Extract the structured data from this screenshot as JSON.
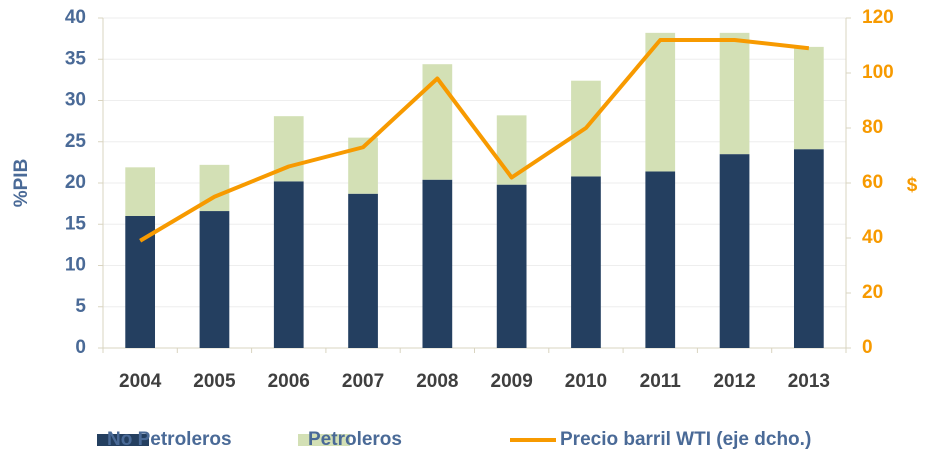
{
  "chart_data": {
    "type": "bar",
    "stacked": true,
    "categories": [
      "2004",
      "2005",
      "2006",
      "2007",
      "2008",
      "2009",
      "2010",
      "2011",
      "2012",
      "2013"
    ],
    "series": [
      {
        "name": "No Petroleros",
        "color": "#243f60",
        "values": [
          16.0,
          16.6,
          20.2,
          18.7,
          20.4,
          19.8,
          20.8,
          21.4,
          23.5,
          24.1
        ]
      },
      {
        "name": "Petroleros",
        "color": "#d3e0b5",
        "values": [
          5.9,
          5.6,
          7.9,
          6.8,
          14.0,
          8.4,
          11.6,
          16.8,
          14.7,
          12.4
        ]
      },
      {
        "name": "Precio barril  WTI (eje dcho.)",
        "color": "#f79a00",
        "type": "line",
        "axis": "y2",
        "values": [
          39,
          55,
          66,
          73,
          98,
          62,
          80,
          112,
          112,
          109
        ]
      }
    ],
    "y_label": "%PIB",
    "y2_label": "$",
    "ylim": [
      0,
      40
    ],
    "yticks": [
      0,
      5,
      10,
      15,
      20,
      25,
      30,
      35,
      40
    ],
    "y2lim": [
      0,
      120
    ],
    "y2ticks": [
      0,
      20,
      40,
      60,
      80,
      100,
      120
    ],
    "grid": true,
    "legend": "bottom"
  }
}
